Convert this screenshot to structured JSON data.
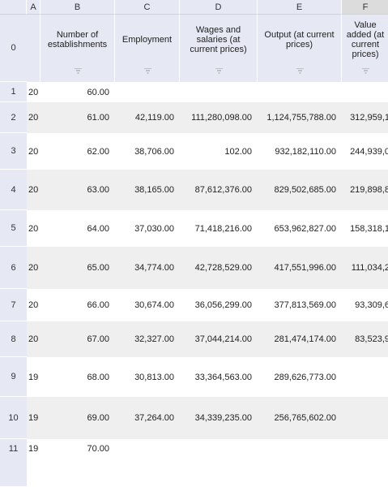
{
  "sheet": {
    "columns": [
      {
        "letter": "A",
        "header": null
      },
      {
        "letter": "B",
        "header": "Number of establishments"
      },
      {
        "letter": "C",
        "header": "Employment"
      },
      {
        "letter": "D",
        "header": "Wages and salaries (at current prices)"
      },
      {
        "letter": "E",
        "header": "Output (at current prices)"
      },
      {
        "letter": "F",
        "header": "Value added (at current prices)"
      }
    ],
    "header_row_label": "0",
    "rows": [
      {
        "label": "1",
        "cells": [
          "20",
          "60.00",
          null,
          null,
          null,
          null
        ]
      },
      {
        "label": "2",
        "cells": [
          "20",
          "61.00",
          "42,119.00",
          "111,280,098.00",
          "1,124,755,788.00",
          "312,959,1"
        ]
      },
      {
        "label": "3",
        "cells": [
          "20",
          "62.00",
          "38,706.00",
          "102.00",
          "932,182,110.00",
          "244,939,0"
        ]
      },
      {
        "label": "4",
        "cells": [
          "20",
          "63.00",
          "38,165.00",
          "87,612,376.00",
          "829,502,685.00",
          "219,898,8"
        ]
      },
      {
        "label": "5",
        "cells": [
          "20",
          "64.00",
          "37,030.00",
          "71,418,216.00",
          "653,962,827.00",
          "158,318,1"
        ]
      },
      {
        "label": "6",
        "cells": [
          "20",
          "65.00",
          "34,774.00",
          "42,728,529.00",
          "417,551,996.00",
          "111,034,2"
        ]
      },
      {
        "label": "7",
        "cells": [
          "20",
          "66.00",
          "30,674.00",
          "36,056,299.00",
          "377,813,569.00",
          "93,309,6"
        ]
      },
      {
        "label": "8",
        "cells": [
          "20",
          "67.00",
          "32,327.00",
          "37,044,214.00",
          "281,474,174.00",
          "83,523,9"
        ]
      },
      {
        "label": "9",
        "cells": [
          "19",
          "68.00",
          "30,813.00",
          "33,364,563.00",
          "289,626,773.00",
          null
        ]
      },
      {
        "label": "10",
        "cells": [
          "19",
          "69.00",
          "37,264.00",
          "34,339,235.00",
          "256,765,602.00",
          null
        ]
      },
      {
        "label": "11",
        "cells": [
          "19",
          "70.00",
          null,
          null,
          null,
          null
        ]
      }
    ]
  }
}
